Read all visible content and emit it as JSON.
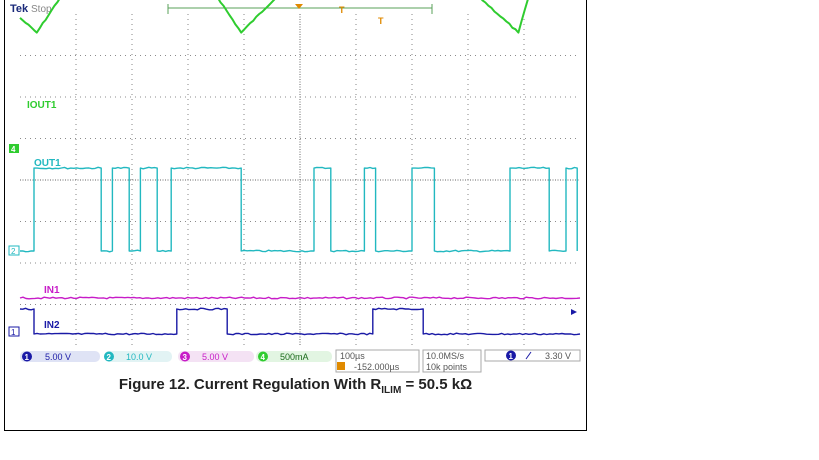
{
  "header": {
    "brand": "Tek",
    "state": "Stop"
  },
  "channel_labels": {
    "ch4_top": "IOUT1",
    "ch2_top": "OUT1",
    "ch3_top": "IN1",
    "ch1_top": "IN2"
  },
  "channel_markers": {
    "ch4": "4",
    "ch2": "2",
    "ch1": "1"
  },
  "trigger_marker": "T",
  "status_bar": {
    "ch1": {
      "num": "1",
      "scale": "5.00 V"
    },
    "ch2": {
      "num": "2",
      "scale": "10.0 V"
    },
    "ch3": {
      "num": "3",
      "scale": "5.00 V"
    },
    "ch4": {
      "num": "4",
      "scale": "500mA"
    },
    "time": {
      "per_div": "100µs",
      "position": "-152.000µs"
    },
    "acq": {
      "rate": "10.0MS/s",
      "points": "10k points"
    },
    "trigger": {
      "num": "1",
      "level": "3.30 V"
    }
  },
  "caption": {
    "prefix": "Figure 12. Current Regulation With R",
    "sub": "ILIM",
    "suffix": " = 50.5 kΩ"
  },
  "colors": {
    "ch1": "#1a1aa6",
    "ch2": "#22b8c0",
    "ch3": "#c71cc7",
    "ch4": "#2fcc2f",
    "grid": "#666666"
  },
  "chart_data": {
    "type": "line",
    "xlabel": "",
    "ylabel": "",
    "xlim": [
      0,
      10
    ],
    "grid": true,
    "series": [
      {
        "name": "IOUT1",
        "x": [
          0,
          0.3,
          1.35,
          1.75,
          2.1,
          2.5,
          2.9,
          3.95,
          5.5,
          5.9,
          6.3,
          6.7,
          7.1,
          7.4,
          8.9,
          9.35,
          9.75,
          10.0
        ],
        "y": [
          2.25,
          2.0,
          3.5,
          3.2,
          3.5,
          3.2,
          3.5,
          2.0,
          3.5,
          3.0,
          3.5,
          3.2,
          3.5,
          3.3,
          2.0,
          3.5,
          3.2,
          3.0
        ]
      },
      {
        "name": "OUT1",
        "x": [
          0,
          0.25,
          0.25,
          1.45,
          1.45,
          1.65,
          1.65,
          1.95,
          1.95,
          2.15,
          2.15,
          2.45,
          2.45,
          2.7,
          2.7,
          3.95,
          3.95,
          5.25,
          5.25,
          5.55,
          5.55,
          6.15,
          6.15,
          6.35,
          6.35,
          7.0,
          7.0,
          7.4,
          7.4,
          8.75,
          8.75,
          9.45,
          9.45,
          9.75,
          9.75,
          9.95,
          9.95
        ],
        "y": [
          0,
          0,
          1.3,
          1.3,
          0,
          0,
          1.3,
          1.3,
          0,
          0,
          1.3,
          1.3,
          0,
          0,
          1.3,
          1.3,
          0,
          0,
          1.3,
          1.3,
          0,
          0,
          1.3,
          1.3,
          0,
          0,
          1.3,
          1.3,
          0,
          0,
          1.3,
          1.3,
          0,
          0,
          1.3,
          1.3,
          0
        ]
      },
      {
        "name": "IN1",
        "x": [
          0,
          10.0
        ],
        "y": [
          1,
          1
        ]
      },
      {
        "name": "IN2",
        "x": [
          0,
          0.25,
          0.25,
          2.8,
          2.8,
          3.7,
          3.7,
          6.3,
          6.3,
          7.2,
          7.2,
          10.0
        ],
        "y": [
          1,
          1,
          0,
          0,
          1,
          1,
          0,
          0,
          1,
          1,
          0,
          0
        ]
      }
    ]
  }
}
